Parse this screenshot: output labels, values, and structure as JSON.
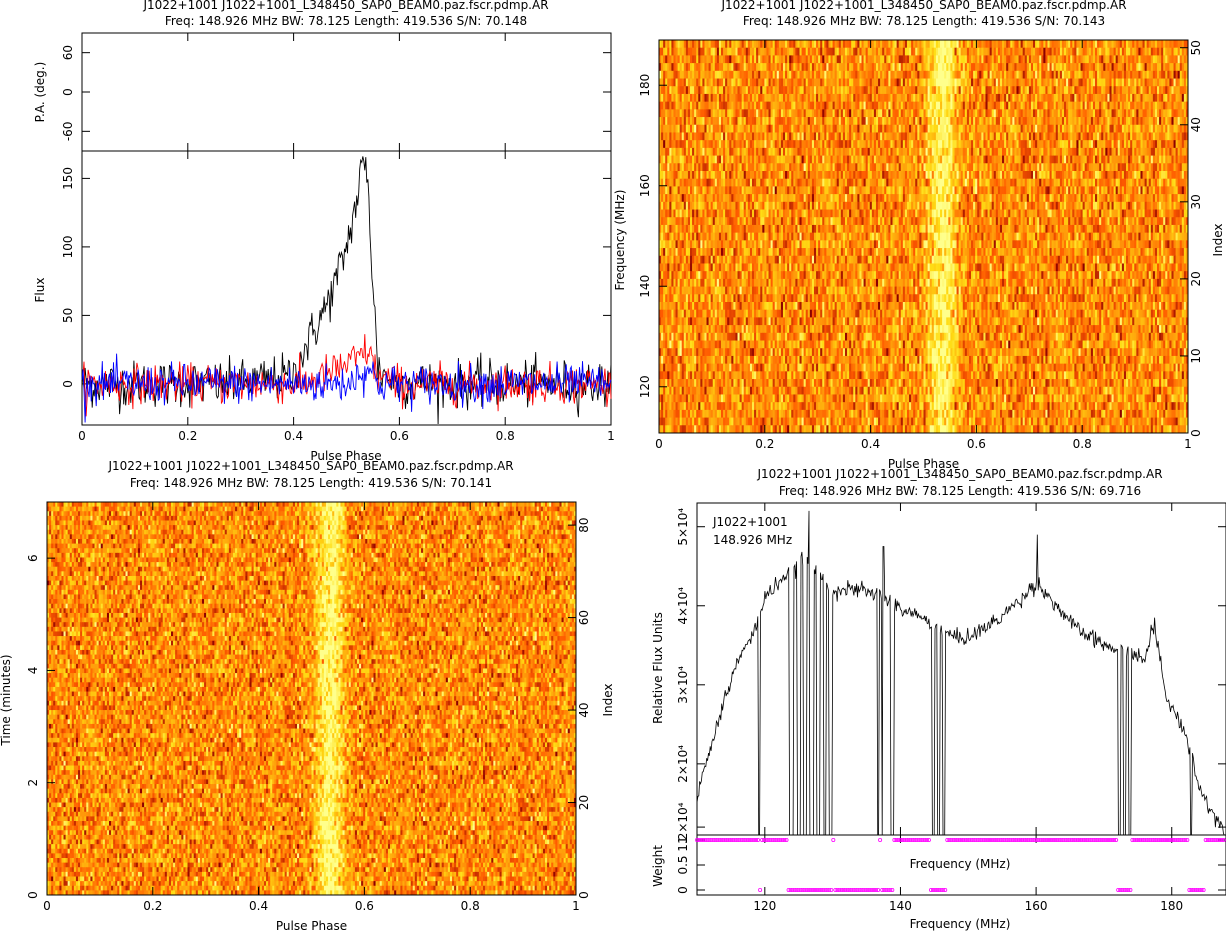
{
  "panels": {
    "profile": {
      "title": "J1022+1001 J1022+1001_L348450_SAP0_BEAM0.paz.fscr.pdmp.AR",
      "subtitle": "Freq: 148.926 MHz BW: 78.125 Length: 419.536 S/N: 70.148"
    },
    "freq_phase": {
      "title": "J1022+1001 J1022+1001_L348450_SAP0_BEAM0.paz.fscr.pdmp.AR",
      "subtitle": "Freq: 148.926 MHz BW: 78.125 Length: 419.536 S/N: 70.143"
    },
    "time_phase": {
      "title": "J1022+1001 J1022+1001_L348450_SAP0_BEAM0.paz.fscr.pdmp.AR",
      "subtitle": "Freq: 148.926 MHz BW: 78.125 Length: 419.536 S/N: 70.141"
    },
    "bandpass": {
      "title": "J1022+1001 J1022+1001_L348450_SAP0_BEAM0.paz.fscr.pdmp.AR",
      "subtitle": "Freq: 148.926 MHz BW: 78.125 Length: 419.536 S/N: 69.716",
      "annotation_source": "J1022+1001",
      "annotation_freq": "148.926 MHz"
    }
  },
  "colors": {
    "total_intensity": "#000000",
    "linear_pol": "#ff0000",
    "circular_pol": "#0000ff",
    "weights": "#ff00ff",
    "heat_low": "#8b0000",
    "heat_mid": "#ff8c00",
    "heat_high": "#ffff80"
  },
  "chart_data": [
    {
      "type": "line",
      "name": "polarization-angle",
      "xlabel": "",
      "ylabel": "P.A. (deg.)",
      "xlim": [
        0,
        1
      ],
      "ylim": [
        -90,
        90
      ],
      "xticks": [],
      "yticks": [
        -60,
        0,
        60
      ],
      "series": []
    },
    {
      "type": "line",
      "name": "pulse-profile",
      "xlabel": "Pulse Phase",
      "ylabel": "Flux",
      "xlim": [
        0,
        1
      ],
      "ylim": [
        -30,
        170
      ],
      "xticks": [
        0,
        0.2,
        0.4,
        0.6,
        0.8,
        1
      ],
      "yticks": [
        0,
        50,
        100,
        150
      ],
      "series": [
        {
          "name": "",
          "color": "#000000",
          "noise": 12,
          "x": [
            0,
            0.3,
            0.4,
            0.42,
            0.44,
            0.46,
            0.48,
            0.5,
            0.52,
            0.53,
            0.54,
            0.55,
            0.56,
            0.6,
            1
          ],
          "y": [
            0,
            0,
            6,
            25,
            40,
            55,
            75,
            100,
            135,
            160,
            155,
            70,
            10,
            0,
            0
          ]
        },
        {
          "name": "",
          "color": "#ff0000",
          "noise": 10,
          "x": [
            0,
            0.42,
            0.48,
            0.52,
            0.54,
            0.56,
            0.6,
            1
          ],
          "y": [
            0,
            0,
            10,
            18,
            25,
            5,
            0,
            0
          ]
        },
        {
          "name": "",
          "color": "#0000ff",
          "noise": 10,
          "x": [
            0,
            0.5,
            0.54,
            0.56,
            1
          ],
          "y": [
            0,
            0,
            12,
            0,
            0
          ]
        }
      ]
    },
    {
      "type": "heatmap",
      "name": "frequency-vs-phase",
      "xlabel": "Pulse Phase",
      "ylabel": "Frequency (MHz)",
      "y2label": "Index",
      "xlim": [
        0,
        1
      ],
      "ylim": [
        110.8,
        189
      ],
      "y2lim": [
        0,
        51
      ],
      "xticks": [
        0,
        0.2,
        0.4,
        0.6,
        0.8,
        1
      ],
      "yticks": [
        120,
        140,
        160,
        180
      ],
      "y2ticks": [
        0,
        10,
        20,
        30,
        40,
        50
      ],
      "pulse_center": 0.535,
      "pulse_width": 0.05,
      "rows": 51,
      "cols": 256
    },
    {
      "type": "heatmap",
      "name": "time-vs-phase",
      "xlabel": "Pulse Phase",
      "ylabel": "Time (minutes)",
      "y2label": "Index",
      "xlim": [
        0,
        1
      ],
      "ylim": [
        0,
        7
      ],
      "y2lim": [
        0,
        85
      ],
      "xticks": [
        0,
        0.2,
        0.4,
        0.6,
        0.8,
        1
      ],
      "yticks": [
        0,
        2,
        4,
        6
      ],
      "y2ticks": [
        0,
        20,
        40,
        60,
        80
      ],
      "pulse_center": 0.535,
      "pulse_width": 0.05,
      "rows": 85,
      "cols": 256
    },
    {
      "type": "line",
      "name": "bandpass",
      "xlabel": "Frequency (MHz)",
      "ylabel": "Relative Flux Units",
      "xlim": [
        110,
        188
      ],
      "ylim": [
        11000,
        53000
      ],
      "xticks": [
        120,
        140,
        160,
        180
      ],
      "ytick_labels": [
        "1.2×10⁴",
        "2×10⁴",
        "3×10⁴",
        "4×10⁴",
        "5×10⁴"
      ],
      "ytick_values": [
        12000,
        20000,
        30000,
        40000,
        50000
      ],
      "series": [
        {
          "name": "",
          "x": [
            110,
            112,
            114,
            116,
            118,
            119,
            120,
            122,
            124,
            126,
            128,
            130,
            132,
            134,
            136,
            137,
            138,
            140,
            142,
            144,
            146,
            148,
            150,
            152,
            154,
            156,
            158,
            160,
            162,
            164,
            166,
            168,
            170,
            172,
            174,
            176,
            177,
            178,
            179,
            180,
            182,
            183,
            184,
            186,
            188
          ],
          "y": [
            16000,
            22000,
            28000,
            33000,
            36000,
            38000,
            41000,
            43000,
            44500,
            46000,
            44000,
            42000,
            42000,
            42000,
            41500,
            41500,
            41000,
            39500,
            39000,
            38000,
            37000,
            36000,
            36000,
            37000,
            38000,
            39500,
            41000,
            43000,
            41000,
            39000,
            37000,
            36000,
            35000,
            34500,
            34000,
            33000,
            37000,
            35000,
            29000,
            27000,
            24000,
            21000,
            17000,
            14000,
            11000
          ]
        }
      ],
      "spikes": [
        [
          126.5,
          52000
        ],
        [
          137.5,
          47500
        ],
        [
          160.2,
          49000
        ],
        [
          177.5,
          38500
        ]
      ],
      "dropouts": [
        [
          119.0,
          119.3
        ],
        [
          123.6,
          124.2
        ],
        [
          124.7,
          125.3
        ],
        [
          125.7,
          126.2
        ],
        [
          126.6,
          127.2
        ],
        [
          127.6,
          128.1
        ],
        [
          128.6,
          129.1
        ],
        [
          129.4,
          129.9
        ],
        [
          136.6,
          136.9
        ],
        [
          137.3,
          137.6
        ],
        [
          138.5,
          139.0
        ],
        [
          144.6,
          145.0
        ],
        [
          145.4,
          145.8
        ],
        [
          146.2,
          146.6
        ],
        [
          172.1,
          172.5
        ],
        [
          172.8,
          173.2
        ],
        [
          173.6,
          174.0
        ],
        [
          182.7,
          183.0
        ]
      ]
    },
    {
      "type": "scatter",
      "name": "weights",
      "xlabel": "Frequency (MHz)",
      "ylabel": "Weight",
      "xlim": [
        110,
        188
      ],
      "ylim": [
        -0.1,
        1.1
      ],
      "xticks": [
        120,
        140,
        160,
        180
      ],
      "yticks": [
        0,
        0.5,
        1
      ],
      "zero_ranges": [
        [
          119.0,
          119.4
        ],
        [
          123.4,
          129.9
        ],
        [
          130.2,
          137.0
        ],
        [
          137.2,
          139.0
        ],
        [
          144.5,
          146.7
        ],
        [
          172.0,
          174.1
        ],
        [
          182.6,
          184.8
        ]
      ]
    }
  ]
}
